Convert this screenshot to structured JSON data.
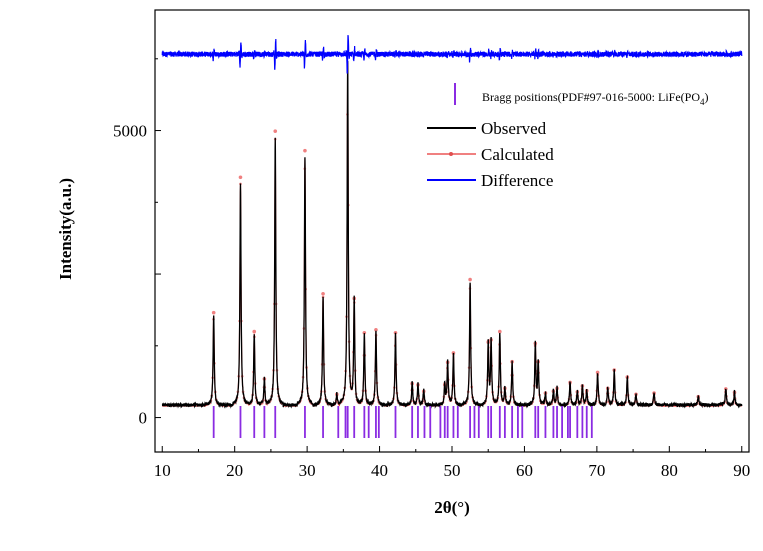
{
  "chart_data": {
    "type": "line",
    "xlabel": "2θ(°)",
    "ylabel": "Intensity(a.u.)",
    "xlim": [
      9,
      91
    ],
    "ylim": [
      -600,
      7100
    ],
    "x_ticks": [
      10,
      20,
      30,
      40,
      50,
      60,
      70,
      80,
      90
    ],
    "x_tick_labels": [
      "10",
      "20",
      "30",
      "40",
      "50",
      "60",
      "70",
      "80",
      "90"
    ],
    "y_ticks": [
      0,
      2500,
      5000
    ],
    "y_tick_labels": [
      "0",
      "",
      "5000"
    ],
    "legend_placement": "top-right",
    "bragg_label_prefix": "Bragg positions(PDF#97-016-5000: LiFe(PO",
    "bragg_label_subscript": "4",
    "bragg_label_suffix": ")",
    "series": [
      {
        "name": "Observed",
        "color": "#000000",
        "baseline": 220
      },
      {
        "name": "Calculated",
        "color": "#f08080",
        "baseline": 200
      },
      {
        "name": "Difference",
        "color": "#0000ff",
        "baseline": 6330
      }
    ],
    "bragg_color": "#8a2be2",
    "peaks": [
      [
        17.1,
        1580
      ],
      [
        20.8,
        3870
      ],
      [
        22.7,
        1260
      ],
      [
        24.1,
        460
      ],
      [
        25.6,
        4650
      ],
      [
        29.7,
        4320
      ],
      [
        32.2,
        1900
      ],
      [
        34.1,
        200
      ],
      [
        35.6,
        5970
      ],
      [
        36.5,
        1820
      ],
      [
        37.9,
        1240
      ],
      [
        39.5,
        1290
      ],
      [
        42.2,
        1240
      ],
      [
        44.5,
        380
      ],
      [
        45.3,
        360
      ],
      [
        46.1,
        250
      ],
      [
        49.0,
        360
      ],
      [
        49.4,
        740
      ],
      [
        50.2,
        900
      ],
      [
        52.5,
        2140
      ],
      [
        55.0,
        1080
      ],
      [
        55.4,
        1120
      ],
      [
        56.6,
        1260
      ],
      [
        57.3,
        300
      ],
      [
        58.3,
        750
      ],
      [
        61.5,
        1060
      ],
      [
        61.9,
        750
      ],
      [
        62.9,
        220
      ],
      [
        64.0,
        250
      ],
      [
        64.5,
        300
      ],
      [
        66.3,
        400
      ],
      [
        67.3,
        240
      ],
      [
        68.0,
        340
      ],
      [
        68.6,
        260
      ],
      [
        70.1,
        570
      ],
      [
        71.5,
        300
      ],
      [
        72.4,
        610
      ],
      [
        74.2,
        490
      ],
      [
        75.4,
        200
      ],
      [
        77.9,
        220
      ],
      [
        84.0,
        160
      ],
      [
        87.8,
        290
      ],
      [
        89.0,
        230
      ]
    ],
    "bragg_positions": [
      17.1,
      20.8,
      22.7,
      24.1,
      25.6,
      29.7,
      32.2,
      34.3,
      35.3,
      35.6,
      36.5,
      37.9,
      38.5,
      39.5,
      39.9,
      42.2,
      44.5,
      45.3,
      46.2,
      47.0,
      48.4,
      49.0,
      49.4,
      50.2,
      50.8,
      52.5,
      53.1,
      53.7,
      55.0,
      55.4,
      56.6,
      57.3,
      58.3,
      59.1,
      59.7,
      61.5,
      61.9,
      62.9,
      64.0,
      64.5,
      65.2,
      66.0,
      66.3,
      67.3,
      68.0,
      68.6,
      69.3
    ]
  }
}
